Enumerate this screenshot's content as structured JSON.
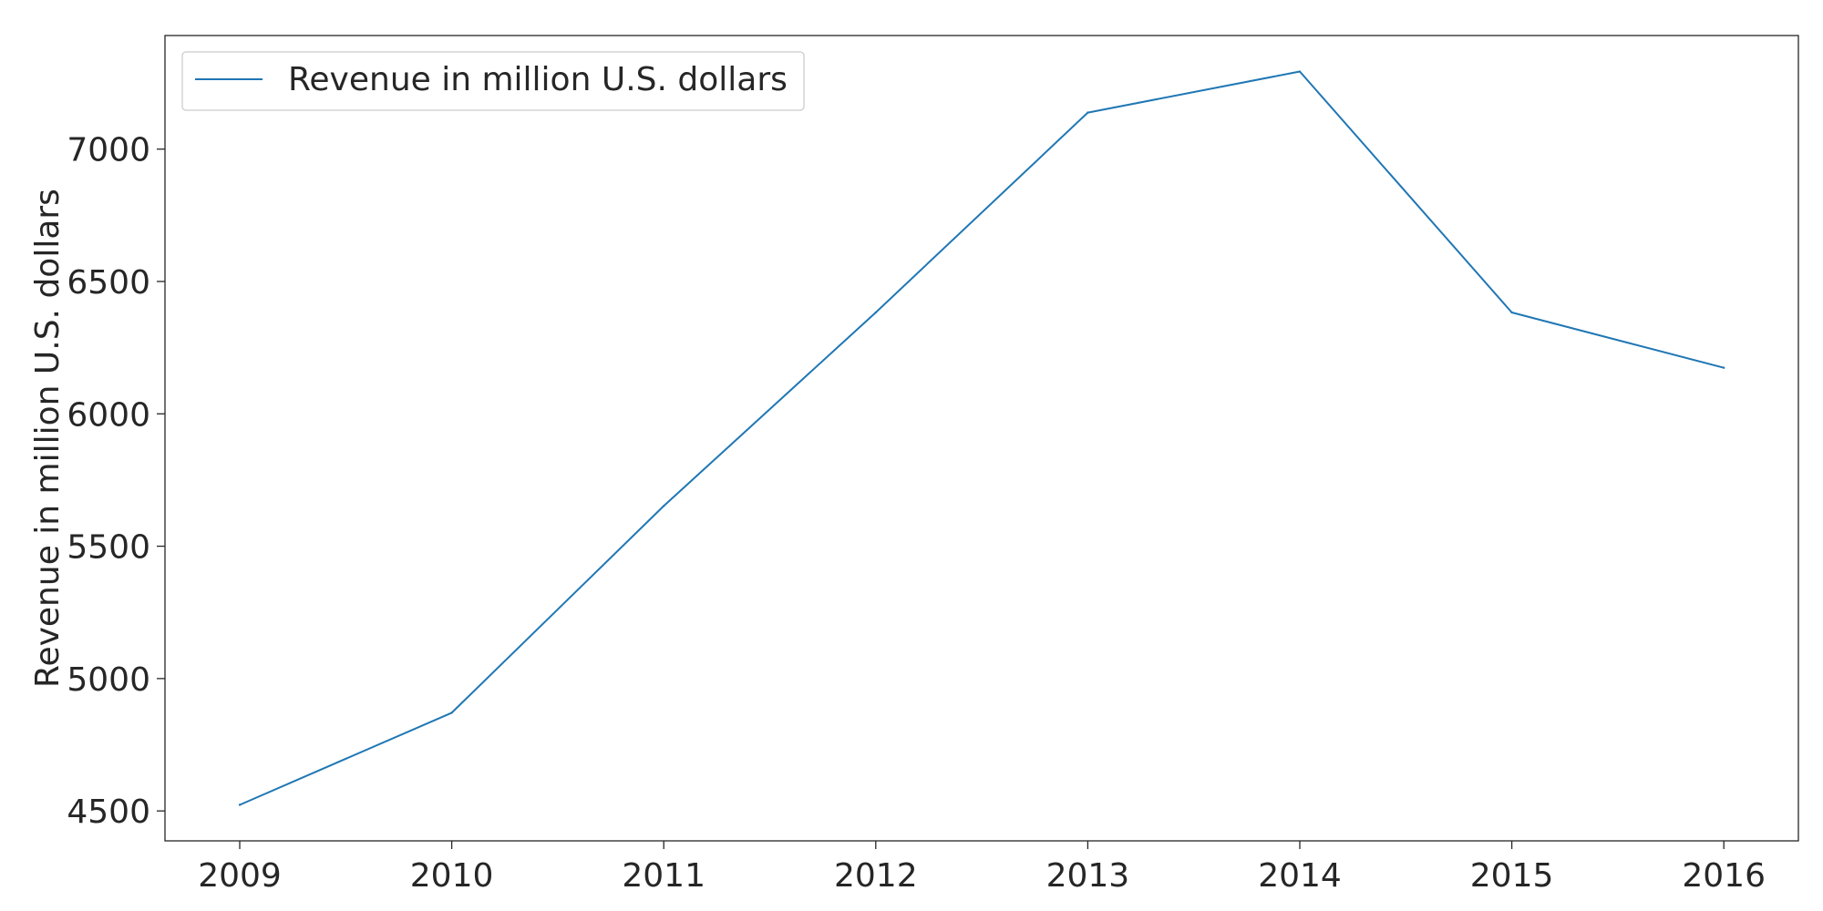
{
  "chart_data": {
    "type": "line",
    "title": "",
    "xlabel": "",
    "ylabel": "Revenue in million U.S. dollars",
    "x": [
      "2009",
      "2010",
      "2011",
      "2012",
      "2013",
      "2014",
      "2015",
      "2016"
    ],
    "series": [
      {
        "name": "Revenue in million U.S. dollars",
        "values": [
          4523,
          4871,
          5652,
          6383,
          7138,
          7293,
          6383,
          6174
        ],
        "color": "#1f77b4"
      }
    ],
    "yticks": [
      4500,
      5000,
      5500,
      6000,
      6500,
      7000
    ],
    "ylim": [
      4387,
      7429
    ],
    "grid": false,
    "legend_position": "top-left"
  }
}
